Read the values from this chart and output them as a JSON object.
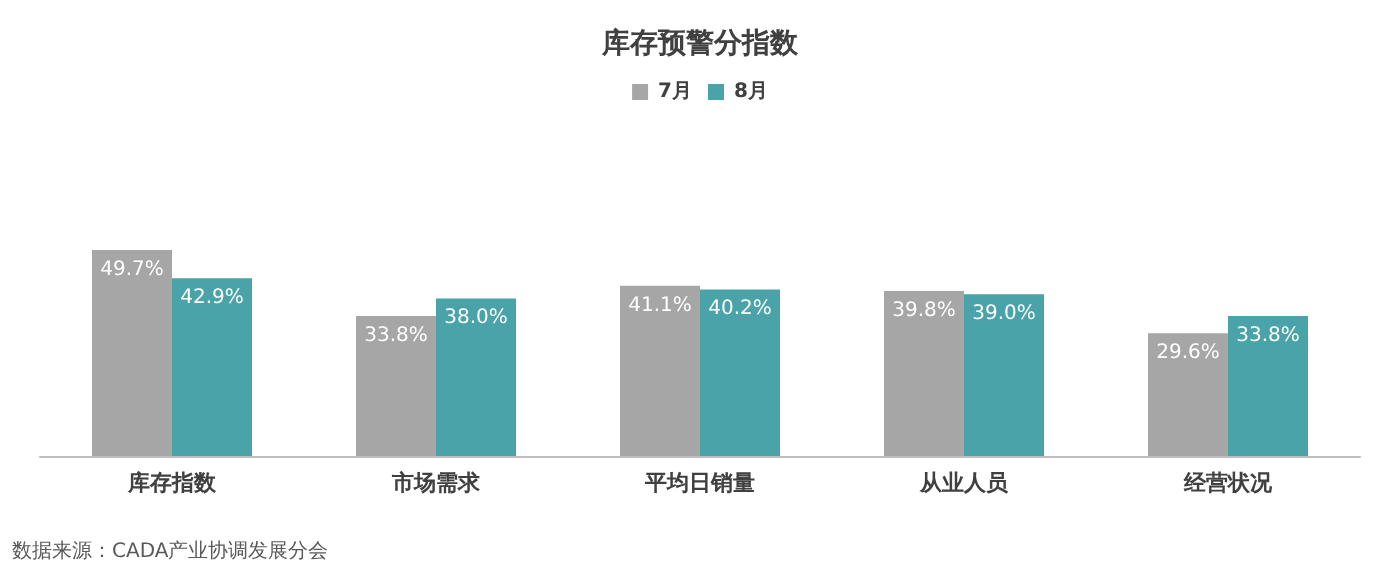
{
  "chart_data": {
    "type": "bar",
    "title": "库存预警分指数",
    "categories": [
      "库存指数",
      "市场需求",
      "平均日销量",
      "从业人员",
      "经营状况"
    ],
    "series": [
      {
        "name": "7月",
        "color": "#a6a6a6",
        "values": [
          49.7,
          33.8,
          41.1,
          39.8,
          29.6
        ],
        "value_labels": [
          "49.7%",
          "33.8%",
          "41.1%",
          "39.8%",
          "29.6%"
        ]
      },
      {
        "name": "8月",
        "color": "#4aa3a8",
        "values": [
          42.9,
          38.0,
          40.2,
          39.0,
          33.8
        ],
        "value_labels": [
          "42.9%",
          "38.0%",
          "40.2%",
          "39.0%",
          "33.8%"
        ]
      }
    ],
    "legend": "top",
    "annotations": [
      "数据来源：CADA产业协调发展分会"
    ]
  }
}
